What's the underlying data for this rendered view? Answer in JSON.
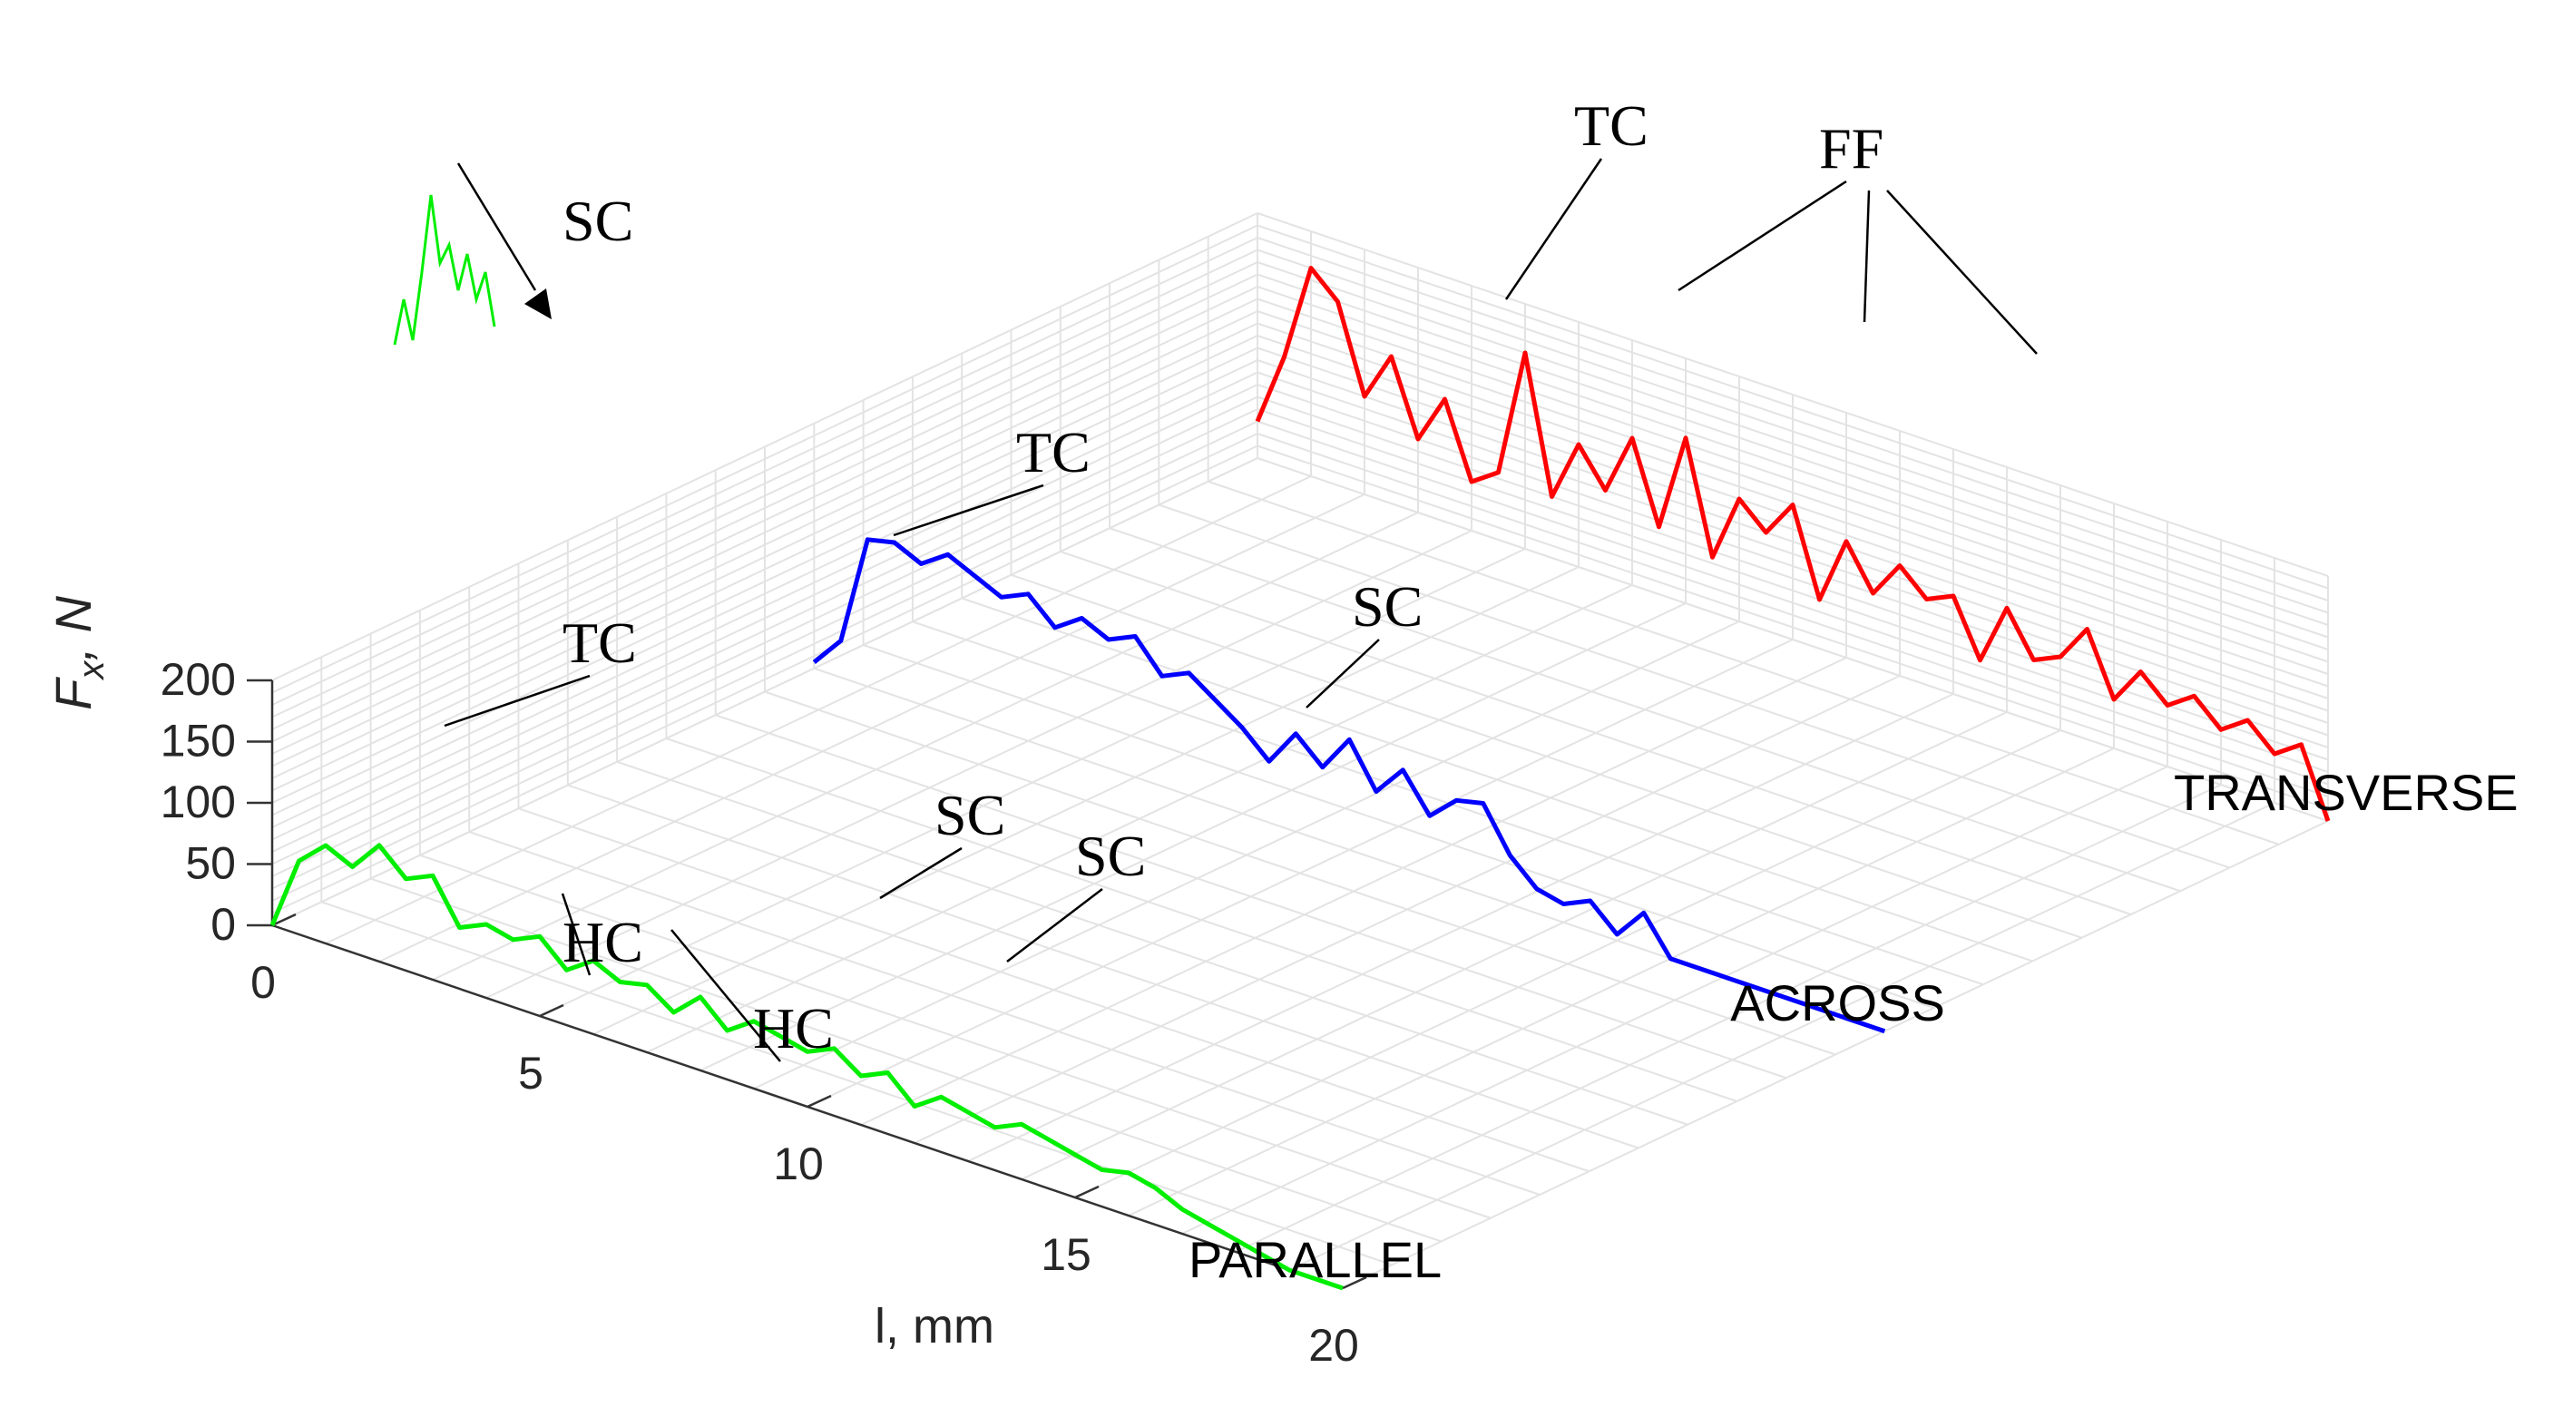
{
  "chart_data": {
    "type": "line",
    "view": "3d-waterfall",
    "x_axis": {
      "label": "l, mm",
      "range": [
        0,
        20
      ],
      "ticks": [
        "0",
        "5",
        "10",
        "15",
        "20"
      ]
    },
    "z_axis": {
      "label_main": "F",
      "label_sub": "x",
      "label_tail": ", N",
      "range": [
        0,
        200
      ],
      "ticks": [
        "0",
        "50",
        "100",
        "150",
        "200"
      ]
    },
    "grid": true,
    "colors": {
      "PARALLEL": "#00ee00",
      "ACROSS": "#0000ff",
      "TRANSVERSE": "#ff0000",
      "axis": "#333333",
      "grid": "#e3e3e3",
      "annotation": "#000000"
    },
    "series": [
      {
        "name": "PARALLEL",
        "x": [
          0.0,
          0.5,
          1.0,
          1.5,
          2.0,
          2.5,
          3.0,
          3.5,
          4.0,
          4.5,
          5.0,
          5.5,
          6.0,
          6.5,
          7.0,
          7.5,
          8.0,
          8.5,
          9.0,
          9.5,
          10.0,
          10.5,
          11.0,
          11.5,
          12.0,
          12.5,
          13.0,
          13.5,
          14.0,
          14.5,
          15.0,
          15.5,
          16.0,
          16.5,
          17.0,
          17.5,
          18.0,
          18.5,
          19.0,
          20.0
        ],
        "y": [
          0,
          60,
          80,
          70,
          95,
          75,
          85,
          50,
          60,
          55,
          65,
          45,
          60,
          50,
          55,
          40,
          60,
          40,
          55,
          50,
          45,
          55,
          40,
          50,
          30,
          45,
          40,
          35,
          45,
          40,
          35,
          30,
          35,
          30,
          20,
          15,
          10,
          5,
          0,
          0
        ]
      },
      {
        "name": "ACROSS",
        "x": [
          0.0,
          0.5,
          1.0,
          1.5,
          2.0,
          2.5,
          3.0,
          3.5,
          4.0,
          4.5,
          5.0,
          5.5,
          6.0,
          6.5,
          7.0,
          7.5,
          8.0,
          8.5,
          9.0,
          9.5,
          10.0,
          10.5,
          11.0,
          11.5,
          12.0,
          12.5,
          13.0,
          13.5,
          14.0,
          14.5,
          15.0,
          15.5,
          16.0,
          17.0,
          18.0,
          19.0,
          20.0
        ],
        "y": [
          5,
          30,
          120,
          125,
          115,
          130,
          120,
          110,
          120,
          100,
          115,
          105,
          115,
          90,
          100,
          85,
          70,
          50,
          80,
          60,
          90,
          55,
          80,
          50,
          70,
          75,
          40,
          20,
          15,
          25,
          5,
          30,
          0,
          0,
          0,
          0,
          0
        ]
      },
      {
        "name": "TRANSVERSE",
        "x": [
          0.0,
          0.5,
          1.0,
          1.5,
          2.0,
          2.5,
          3.0,
          3.5,
          4.0,
          4.5,
          5.0,
          5.5,
          6.0,
          6.5,
          7.0,
          7.5,
          8.0,
          8.5,
          9.0,
          9.5,
          10.0,
          10.5,
          11.0,
          11.5,
          12.0,
          12.5,
          13.0,
          13.5,
          14.0,
          14.5,
          15.0,
          15.5,
          16.0,
          16.5,
          17.0,
          17.5,
          18.0,
          18.5,
          19.0,
          19.5,
          20.0
        ],
        "y": [
          30,
          90,
          170,
          150,
          80,
          120,
          60,
          100,
          40,
          55,
          160,
          50,
          100,
          70,
          120,
          55,
          135,
          45,
          100,
          80,
          110,
          40,
          95,
          60,
          90,
          70,
          80,
          35,
          85,
          50,
          60,
          90,
          40,
          70,
          50,
          65,
          45,
          60,
          40,
          55,
          0
        ]
      }
    ],
    "inset": {
      "label": "SC"
    },
    "annotations": [
      {
        "text": "TC",
        "series": "PARALLEL"
      },
      {
        "text": "HC",
        "series": "PARALLEL"
      },
      {
        "text": "HC",
        "series": "PARALLEL"
      },
      {
        "text": "SC",
        "series": "PARALLEL"
      },
      {
        "text": "SC",
        "series": "PARALLEL"
      },
      {
        "text": "TC",
        "series": "ACROSS"
      },
      {
        "text": "SC",
        "series": "ACROSS"
      },
      {
        "text": "TC",
        "series": "TRANSVERSE"
      },
      {
        "text": "FF",
        "series": "TRANSVERSE"
      }
    ]
  }
}
